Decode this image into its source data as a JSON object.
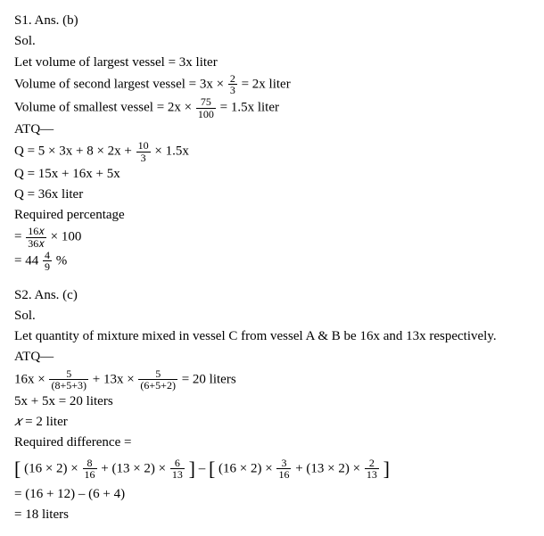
{
  "s1": {
    "header": "S1. Ans. (b)",
    "sol": "Sol.",
    "l1": "Let volume of largest vessel = 3x liter",
    "l2a": "Volume of second largest vessel = 3x ×",
    "f2": {
      "num": "2",
      "den": "3"
    },
    "l2b": "= 2x liter",
    "l3a": "Volume of smallest vessel = 2x ×",
    "f3": {
      "num": "75",
      "den": "100"
    },
    "l3b": "= 1.5x liter",
    "atq": "ATQ—",
    "l4a": "Q = 5 × 3x + 8 × 2x +",
    "f4": {
      "num": "10",
      "den": "3"
    },
    "l4b": "× 1.5x",
    "l5": "Q = 15x + 16x + 5x",
    "l6": "Q = 36x liter",
    "l7": "Required percentage",
    "l8a": "=",
    "f8": {
      "num": "16𝑥",
      "den": "36𝑥"
    },
    "l8b": "× 100",
    "l9a": "= 44",
    "f9": {
      "num": "4",
      "den": "9"
    },
    "l9b": "%"
  },
  "s2": {
    "header": "S2. Ans. (c)",
    "sol": "Sol.",
    "l1": "Let quantity of mixture mixed in vessel C from vessel A & B be 16x and 13x respectively.",
    "atq": "ATQ—",
    "l2a": "16x ×",
    "f2a": {
      "num": "5",
      "den": "(8+5+3)"
    },
    "l2b": "+ 13x ×",
    "f2b": {
      "num": "5",
      "den": "(6+5+2)"
    },
    "l2c": "= 20 liters",
    "l3": "5x + 5x = 20 liters",
    "l4a": "𝑥",
    "l4b": " = 2 liter",
    "l5": "Required difference =",
    "br1": "[",
    "t1a": "(16 × 2) ×",
    "ft1a": {
      "num": "8",
      "den": "16"
    },
    "t1b": "+ (13 × 2) ×",
    "ft1b": {
      "num": "6",
      "den": "13"
    },
    "br2": "]",
    "sep": " – ",
    "br3": "[",
    "t2a": "(16 × 2) ×",
    "ft2a": {
      "num": "3",
      "den": "16"
    },
    "t2b": "+ (13 × 2) ×",
    "ft2b": {
      "num": "2",
      "den": "13"
    },
    "br4": "]",
    "l7": "= (16 + 12) – (6 + 4)",
    "l8": "= 18 liters"
  }
}
